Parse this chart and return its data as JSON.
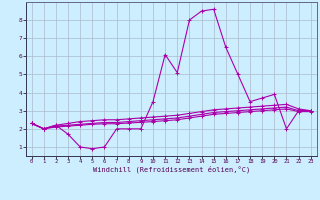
{
  "title": "",
  "xlabel": "Windchill (Refroidissement éolien,°C)",
  "ylabel": "",
  "bg_color": "#cceeff",
  "grid_color": "#aabbcc",
  "line_color": "#aa00aa",
  "xlim": [
    -0.5,
    23.5
  ],
  "ylim": [
    0.5,
    9.0
  ],
  "xticks": [
    0,
    1,
    2,
    3,
    4,
    5,
    6,
    7,
    8,
    9,
    10,
    11,
    12,
    13,
    14,
    15,
    16,
    17,
    18,
    19,
    20,
    21,
    22,
    23
  ],
  "yticks": [
    1,
    2,
    3,
    4,
    5,
    6,
    7,
    8
  ],
  "series": [
    [
      2.3,
      2.0,
      2.2,
      1.7,
      1.0,
      0.9,
      1.0,
      2.0,
      2.0,
      2.0,
      3.5,
      6.1,
      5.1,
      8.0,
      8.5,
      8.6,
      6.5,
      5.0,
      3.5,
      3.7,
      3.9,
      2.0,
      3.0,
      3.0
    ],
    [
      2.3,
      2.0,
      2.2,
      2.3,
      2.4,
      2.45,
      2.5,
      2.5,
      2.55,
      2.6,
      2.65,
      2.7,
      2.75,
      2.85,
      2.95,
      3.05,
      3.1,
      3.15,
      3.2,
      3.25,
      3.3,
      3.35,
      3.1,
      3.0
    ],
    [
      2.3,
      2.0,
      2.15,
      2.2,
      2.25,
      2.3,
      2.35,
      2.35,
      2.4,
      2.45,
      2.5,
      2.55,
      2.6,
      2.7,
      2.8,
      2.9,
      2.95,
      3.0,
      3.05,
      3.1,
      3.15,
      3.2,
      3.0,
      3.0
    ],
    [
      2.3,
      2.0,
      2.1,
      2.15,
      2.2,
      2.25,
      2.28,
      2.28,
      2.32,
      2.36,
      2.4,
      2.45,
      2.5,
      2.6,
      2.7,
      2.8,
      2.85,
      2.9,
      2.95,
      3.0,
      3.05,
      3.1,
      2.95,
      2.95
    ]
  ]
}
